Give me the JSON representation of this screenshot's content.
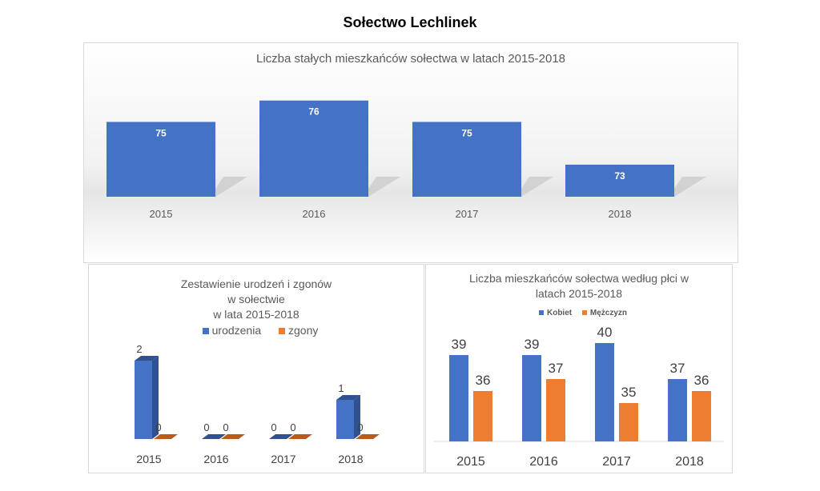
{
  "page_title": "Sołectwo Lechlinek",
  "chart_data": [
    {
      "type": "bar",
      "title": "Liczba stałych mieszkańców sołectwa  w latach 2015-2018",
      "categories": [
        "2015",
        "2016",
        "2017",
        "2018"
      ],
      "values": [
        75,
        76,
        75,
        73
      ],
      "ylim": [
        71.5,
        77
      ],
      "color": "#4472c4"
    },
    {
      "type": "bar",
      "title_lines": [
        "Zestawienie urodzeń i zgonów",
        "w sołectwie",
        "w lata 2015-2018"
      ],
      "categories": [
        "2015",
        "2016",
        "2017",
        "2018"
      ],
      "series": [
        {
          "name": "urodzenia",
          "values": [
            2,
            0,
            0,
            1
          ],
          "color": "#4472c4"
        },
        {
          "name": "zgony",
          "values": [
            0,
            0,
            0,
            0
          ],
          "color": "#ed7d31"
        }
      ],
      "ylim": [
        0,
        2.2
      ],
      "legend": "top"
    },
    {
      "type": "bar",
      "title_lines": [
        "Liczba mieszkańców sołectwa według płci w",
        "latach 2015-2018"
      ],
      "categories": [
        "2015",
        "2016",
        "2017",
        "2018"
      ],
      "series": [
        {
          "name": "Kobiet",
          "values": [
            39,
            39,
            40,
            37
          ],
          "color": "#4472c4"
        },
        {
          "name": "Mężczyzn",
          "values": [
            36,
            37,
            35,
            36
          ],
          "color": "#ed7d31"
        }
      ],
      "ylim": [
        31.8,
        41
      ],
      "legend": "top"
    }
  ]
}
